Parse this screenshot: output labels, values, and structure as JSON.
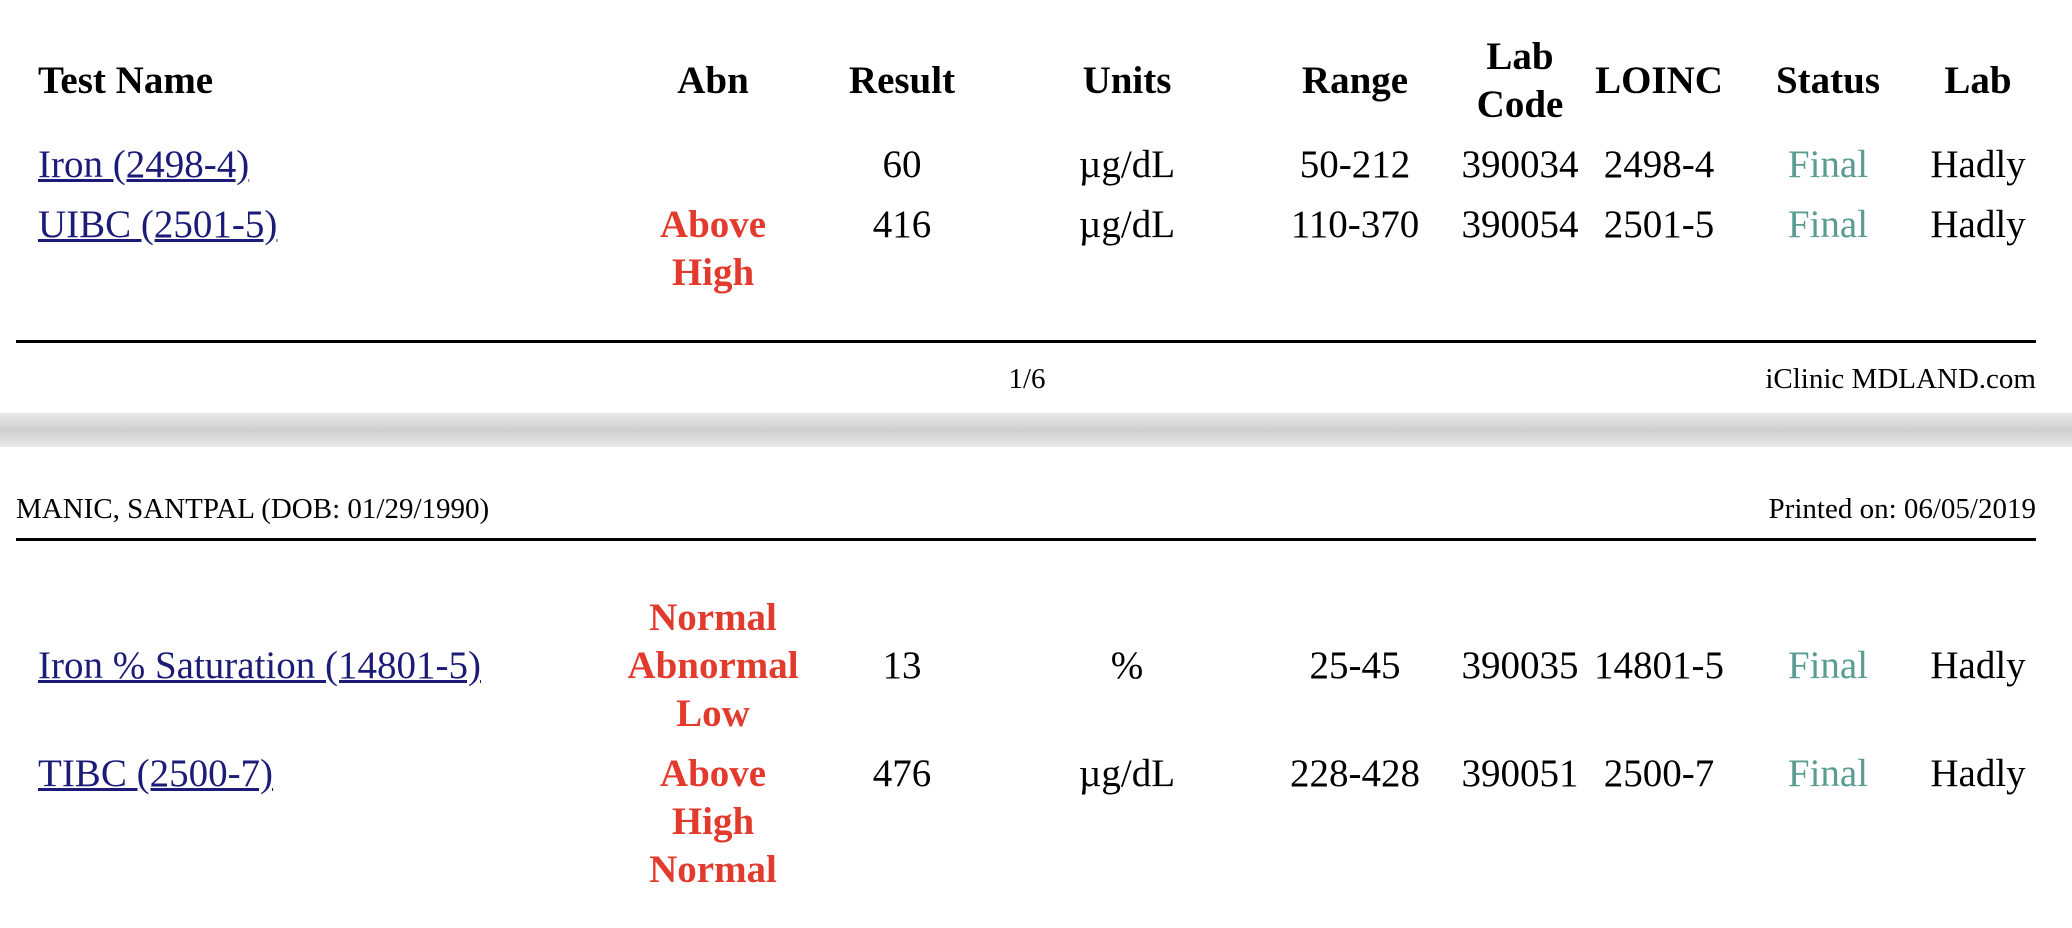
{
  "table": {
    "headers": [
      "Test Name",
      "Abn",
      "Result",
      "Units",
      "Range",
      "Lab Code",
      "LOINC",
      "Status",
      "Lab"
    ],
    "rows": [
      {
        "test": "Iron (2498-4)",
        "result": 60,
        "units": "µg/dL",
        "range": "50-212",
        "lab_code": 390034,
        "loinc": "2498-4",
        "status": "Final",
        "lab": "Hadly"
      },
      {
        "test": "UIBC (2501-5)",
        "abn": "Above High",
        "result": 416,
        "units": "µg/dL",
        "range": "110-370",
        "lab_code": 390054,
        "loinc": "2501-5",
        "status": "Final",
        "lab": "Hadly"
      }
    ]
  },
  "footer": {
    "page": "1/6",
    "site": "iClinic MDLAND.com"
  },
  "header": {
    "patient": "MANIC, SANTPAL (DOB: 01/29/1990)",
    "printed": "Printed on: 06/05/2019"
  },
  "table2": {
    "rows": [
      {
        "test": "Iron % Saturation (14801-5)",
        "abn": "Normal Abnormal Low",
        "result": 13,
        "units": "%",
        "range": "25-45",
        "lab_code": 390035,
        "loinc": "14801-5",
        "status": "Final",
        "lab": "Hadly"
      },
      {
        "test": "TIBC (2500-7)",
        "abn": "Above High Normal",
        "result": 476,
        "units": "µg/dL",
        "range": "228-428",
        "lab_code": 390051,
        "loinc": "2500-7",
        "status": "Final",
        "lab": "Hadly"
      }
    ]
  }
}
